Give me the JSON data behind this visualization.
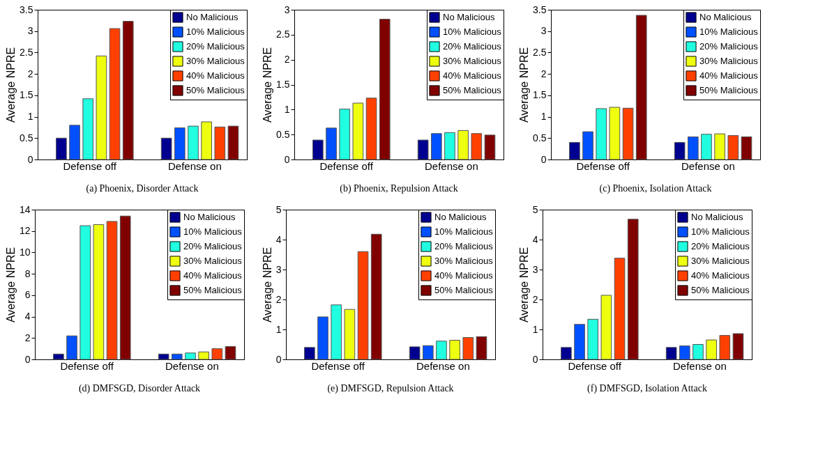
{
  "chart_data": [
    {
      "type": "bar",
      "title": "(a) Phoenix, Disorder Attack",
      "ylabel": "Average NPRE",
      "categories": [
        "Defense off",
        "Defense on"
      ],
      "ylim": [
        0,
        3.5
      ],
      "yticks": [
        0,
        0.5,
        1,
        1.5,
        2,
        2.5,
        3,
        3.5
      ],
      "legend": "top right",
      "grid": false,
      "series": [
        {
          "name": "No Malicious",
          "color": "#000090",
          "values": [
            0.5,
            0.5
          ]
        },
        {
          "name": "10% Malicious",
          "color": "#0050ff",
          "values": [
            0.8,
            0.74
          ]
        },
        {
          "name": "20% Malicious",
          "color": "#20ffe0",
          "values": [
            1.42,
            0.78
          ]
        },
        {
          "name": "30% Malicious",
          "color": "#eeff10",
          "values": [
            2.42,
            0.88
          ]
        },
        {
          "name": "40% Malicious",
          "color": "#ff4000",
          "values": [
            3.06,
            0.76
          ]
        },
        {
          "name": "50% Malicious",
          "color": "#800000",
          "values": [
            3.23,
            0.78
          ]
        }
      ]
    },
    {
      "type": "bar",
      "title": "(b) Phoenix, Repulsion Attack",
      "ylabel": "Average NPRE",
      "categories": [
        "Defense off",
        "Defense on"
      ],
      "ylim": [
        0,
        3
      ],
      "yticks": [
        0,
        0.5,
        1,
        1.5,
        2,
        2.5,
        3
      ],
      "legend": "top right",
      "grid": false,
      "series": [
        {
          "name": "No Malicious",
          "color": "#000090",
          "values": [
            0.39,
            0.39
          ]
        },
        {
          "name": "10% Malicious",
          "color": "#0050ff",
          "values": [
            0.63,
            0.52
          ]
        },
        {
          "name": "20% Malicious",
          "color": "#20ffe0",
          "values": [
            1.01,
            0.54
          ]
        },
        {
          "name": "30% Malicious",
          "color": "#eeff10",
          "values": [
            1.13,
            0.58
          ]
        },
        {
          "name": "40% Malicious",
          "color": "#ff4000",
          "values": [
            1.23,
            0.52
          ]
        },
        {
          "name": "50% Malicious",
          "color": "#800000",
          "values": [
            2.81,
            0.49
          ]
        }
      ]
    },
    {
      "type": "bar",
      "title": "(c) Phoenix, Isolation Attack",
      "ylabel": "Average NPRE",
      "categories": [
        "Defense off",
        "Defense on"
      ],
      "ylim": [
        0,
        3.5
      ],
      "yticks": [
        0,
        0.5,
        1,
        1.5,
        2,
        2.5,
        3,
        3.5
      ],
      "legend": "top right",
      "grid": false,
      "series": [
        {
          "name": "No Malicious",
          "color": "#000090",
          "values": [
            0.4,
            0.4
          ]
        },
        {
          "name": "10% Malicious",
          "color": "#0050ff",
          "values": [
            0.65,
            0.53
          ]
        },
        {
          "name": "20% Malicious",
          "color": "#20ffe0",
          "values": [
            1.19,
            0.59
          ]
        },
        {
          "name": "30% Malicious",
          "color": "#eeff10",
          "values": [
            1.22,
            0.6
          ]
        },
        {
          "name": "40% Malicious",
          "color": "#ff4000",
          "values": [
            1.2,
            0.56
          ]
        },
        {
          "name": "50% Malicious",
          "color": "#800000",
          "values": [
            3.37,
            0.53
          ]
        }
      ]
    },
    {
      "type": "bar",
      "title": "(d) DMFSGD, Disorder Attack",
      "ylabel": "Average NPRE",
      "categories": [
        "Defense off",
        "Defense on"
      ],
      "ylim": [
        0,
        14
      ],
      "yticks": [
        0,
        2,
        4,
        6,
        8,
        10,
        12,
        14
      ],
      "legend": "top right",
      "grid": false,
      "series": [
        {
          "name": "No Malicious",
          "color": "#000090",
          "values": [
            0.5,
            0.5
          ]
        },
        {
          "name": "10% Malicious",
          "color": "#0050ff",
          "values": [
            2.2,
            0.5
          ]
        },
        {
          "name": "20% Malicious",
          "color": "#20ffe0",
          "values": [
            12.5,
            0.6
          ]
        },
        {
          "name": "30% Malicious",
          "color": "#eeff10",
          "values": [
            12.6,
            0.7
          ]
        },
        {
          "name": "40% Malicious",
          "color": "#ff4000",
          "values": [
            12.9,
            1.0
          ]
        },
        {
          "name": "50% Malicious",
          "color": "#800000",
          "values": [
            13.4,
            1.2
          ]
        }
      ]
    },
    {
      "type": "bar",
      "title": "(e) DMFSGD, Repulsion Attack",
      "ylabel": "Average NPRE",
      "categories": [
        "Defense off",
        "Defense on"
      ],
      "ylim": [
        0,
        5
      ],
      "yticks": [
        0,
        1,
        2,
        3,
        4,
        5
      ],
      "legend": "top right",
      "grid": false,
      "series": [
        {
          "name": "No Malicious",
          "color": "#000090",
          "values": [
            0.4,
            0.42
          ]
        },
        {
          "name": "10% Malicious",
          "color": "#0050ff",
          "values": [
            1.42,
            0.46
          ]
        },
        {
          "name": "20% Malicious",
          "color": "#20ffe0",
          "values": [
            1.82,
            0.61
          ]
        },
        {
          "name": "30% Malicious",
          "color": "#eeff10",
          "values": [
            1.67,
            0.64
          ]
        },
        {
          "name": "40% Malicious",
          "color": "#ff4000",
          "values": [
            3.6,
            0.73
          ]
        },
        {
          "name": "50% Malicious",
          "color": "#800000",
          "values": [
            4.18,
            0.76
          ]
        }
      ]
    },
    {
      "type": "bar",
      "title": "(f) DMFSGD, Isolation Attack",
      "ylabel": "Average NPRE",
      "categories": [
        "Defense off",
        "Defense on"
      ],
      "ylim": [
        0,
        5
      ],
      "yticks": [
        0,
        1,
        2,
        3,
        4,
        5
      ],
      "legend": "top right",
      "grid": false,
      "series": [
        {
          "name": "No Malicious",
          "color": "#000090",
          "values": [
            0.4,
            0.4
          ]
        },
        {
          "name": "10% Malicious",
          "color": "#0050ff",
          "values": [
            1.17,
            0.45
          ]
        },
        {
          "name": "20% Malicious",
          "color": "#20ffe0",
          "values": [
            1.34,
            0.5
          ]
        },
        {
          "name": "30% Malicious",
          "color": "#eeff10",
          "values": [
            2.14,
            0.65
          ]
        },
        {
          "name": "40% Malicious",
          "color": "#ff4000",
          "values": [
            3.38,
            0.8
          ]
        },
        {
          "name": "50% Malicious",
          "color": "#800000",
          "values": [
            4.68,
            0.86
          ]
        }
      ]
    }
  ]
}
